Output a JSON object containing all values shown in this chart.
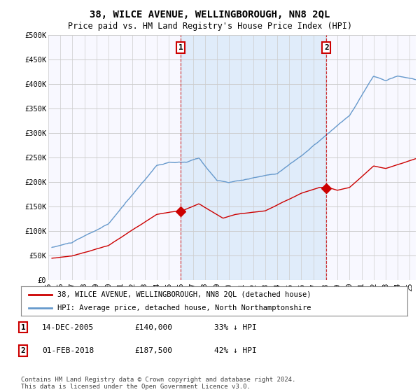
{
  "title": "38, WILCE AVENUE, WELLINGBOROUGH, NN8 2QL",
  "subtitle": "Price paid vs. HM Land Registry's House Price Index (HPI)",
  "title_fontsize": 10,
  "subtitle_fontsize": 8.5,
  "background_color": "#ffffff",
  "plot_bg_color": "#f8f8ff",
  "grid_color": "#cccccc",
  "red_line_color": "#cc0000",
  "blue_line_color": "#6699cc",
  "fill_color": "#d0e4f7",
  "sale1_date_num": 2006.0,
  "sale1_price": 140000,
  "sale2_date_num": 2018.08,
  "sale2_price": 187500,
  "ylim": [
    0,
    500000
  ],
  "xlim_left": 1995.3,
  "xlim_right": 2025.5,
  "yticks": [
    0,
    50000,
    100000,
    150000,
    200000,
    250000,
    300000,
    350000,
    400000,
    450000,
    500000
  ],
  "ytick_labels": [
    "£0",
    "£50K",
    "£100K",
    "£150K",
    "£200K",
    "£250K",
    "£300K",
    "£350K",
    "£400K",
    "£450K",
    "£500K"
  ],
  "xticks": [
    1995,
    1996,
    1997,
    1998,
    1999,
    2000,
    2001,
    2002,
    2003,
    2004,
    2005,
    2006,
    2007,
    2008,
    2009,
    2010,
    2011,
    2012,
    2013,
    2014,
    2015,
    2016,
    2017,
    2018,
    2019,
    2020,
    2021,
    2022,
    2023,
    2024,
    2025
  ],
  "xtick_labels": [
    "95",
    "96",
    "97",
    "98",
    "99",
    "00",
    "01",
    "02",
    "03",
    "04",
    "05",
    "06",
    "07",
    "08",
    "09",
    "10",
    "11",
    "12",
    "13",
    "14",
    "15",
    "16",
    "17",
    "18",
    "19",
    "20",
    "21",
    "22",
    "23",
    "24",
    "25"
  ],
  "legend_label_red": "38, WILCE AVENUE, WELLINGBOROUGH, NN8 2QL (detached house)",
  "legend_label_blue": "HPI: Average price, detached house, North Northamptonshire",
  "sale1_label": "1",
  "sale2_label": "2",
  "sale1_date_str": "14-DEC-2005",
  "sale1_price_str": "£140,000",
  "sale1_hpi_str": "33% ↓ HPI",
  "sale2_date_str": "01-FEB-2018",
  "sale2_price_str": "£187,500",
  "sale2_hpi_str": "42% ↓ HPI",
  "footer": "Contains HM Land Registry data © Crown copyright and database right 2024.\nThis data is licensed under the Open Government Licence v3.0.",
  "font_family": "DejaVu Sans Mono"
}
